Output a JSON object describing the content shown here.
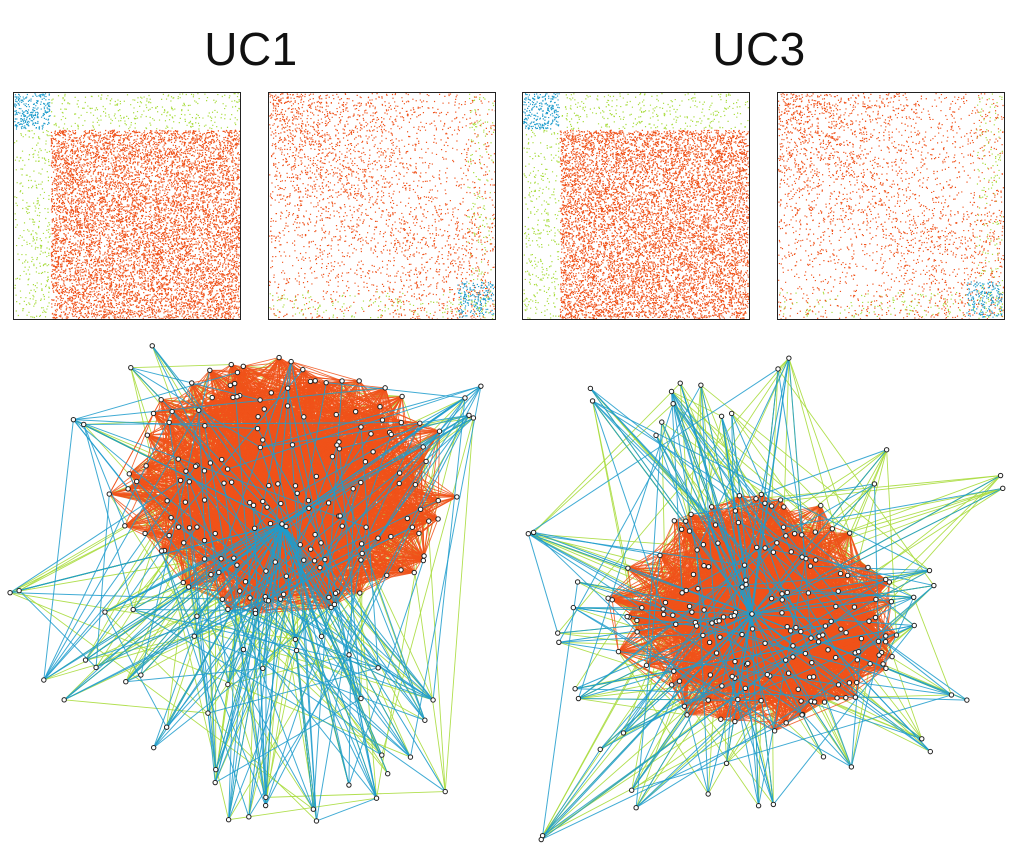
{
  "panels": [
    {
      "title": "UC1"
    },
    {
      "title": "UC3"
    }
  ],
  "colors": {
    "orange": "#f0521a",
    "lime": "#a8dc3c",
    "blue": "#1e9ccc",
    "node_fill": "#ffffff",
    "node_stroke": "#222222"
  }
}
